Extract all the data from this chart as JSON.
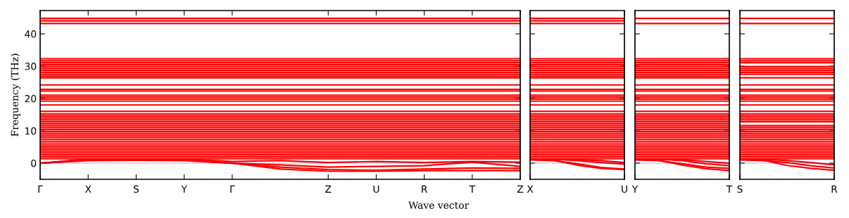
{
  "chart_data": [
    {
      "type": "line",
      "ylabel": "Frequency (THz)",
      "xlabel": "Wave vector",
      "color": "#ff0000",
      "line_style": "solid",
      "marker": "none",
      "grid": false,
      "ylim": [
        -5,
        47.2
      ],
      "yticks": [
        0,
        10,
        20,
        30,
        40
      ],
      "categories": [
        "Γ",
        "X",
        "S",
        "Y",
        "Γ",
        null,
        "Z",
        "U",
        "R",
        "T",
        "Z"
      ],
      "ref_lines": [
        {
          "axis": "y",
          "value": 0,
          "color": "#0000ff",
          "line_style": "dotted"
        }
      ],
      "series": [
        {
          "values": [
            44.8,
            44.8,
            44.8,
            44.8,
            44.8,
            44.8,
            44.8,
            44.8,
            44.8,
            44.8,
            44.8
          ]
        },
        {
          "values": [
            44.0,
            44.0,
            44.0,
            44.0,
            44.0,
            44.0,
            44.0,
            44.0,
            44.0,
            44.0,
            44.0
          ]
        },
        {
          "values": [
            43.2,
            43.2,
            43.2,
            43.2,
            43.2,
            43.2,
            43.2,
            43.2,
            43.2,
            43.2,
            43.2
          ]
        },
        {
          "values": [
            32.3,
            32.3,
            32.3,
            32.3,
            32.3,
            32.3,
            32.3,
            32.3,
            32.3,
            32.3,
            32.3
          ]
        },
        {
          "values": [
            31.7,
            31.7,
            31.7,
            31.7,
            31.7,
            31.7,
            31.7,
            31.7,
            31.7,
            31.7,
            31.7
          ]
        },
        {
          "values": [
            31.1,
            31.1,
            31.1,
            31.1,
            31.1,
            31.1,
            31.1,
            31.1,
            31.1,
            31.1,
            31.1
          ]
        },
        {
          "values": [
            30.5,
            30.5,
            30.5,
            30.5,
            30.5,
            30.5,
            30.5,
            30.5,
            30.5,
            30.5,
            30.5
          ]
        },
        {
          "values": [
            29.9,
            29.9,
            29.9,
            29.9,
            29.9,
            29.9,
            29.9,
            29.9,
            29.9,
            29.9,
            29.9
          ]
        },
        {
          "values": [
            29.3,
            29.3,
            29.3,
            29.3,
            29.3,
            29.3,
            29.3,
            29.3,
            29.3,
            29.3,
            29.3
          ]
        },
        {
          "values": [
            28.7,
            28.7,
            28.7,
            28.7,
            28.7,
            28.7,
            28.7,
            28.7,
            28.7,
            28.7,
            28.7
          ]
        },
        {
          "values": [
            28.1,
            28.1,
            28.1,
            28.1,
            28.1,
            28.1,
            28.1,
            28.1,
            28.1,
            28.1,
            28.1
          ]
        },
        {
          "values": [
            27.5,
            27.5,
            27.5,
            27.5,
            27.5,
            27.5,
            27.5,
            27.5,
            27.5,
            27.5,
            27.5
          ]
        },
        {
          "values": [
            26.9,
            26.9,
            26.9,
            26.9,
            26.9,
            26.9,
            26.9,
            26.9,
            26.9,
            26.9,
            26.9
          ]
        },
        {
          "values": [
            26.4,
            26.4,
            26.4,
            26.4,
            26.4,
            26.4,
            26.4,
            26.4,
            26.4,
            26.4,
            26.4
          ]
        },
        {
          "values": [
            24.2,
            24.2,
            24.2,
            24.2,
            24.2,
            24.2,
            24.2,
            24.2,
            24.2,
            24.2,
            24.2
          ]
        },
        {
          "values": [
            22.8,
            22.8,
            22.8,
            22.8,
            22.8,
            22.8,
            22.8,
            22.8,
            22.8,
            22.8,
            22.8
          ]
        },
        {
          "values": [
            22.3,
            22.3,
            22.3,
            22.3,
            22.3,
            22.3,
            22.3,
            22.3,
            22.3,
            22.3,
            22.3
          ]
        },
        {
          "values": [
            21.0,
            21.0,
            21.0,
            21.0,
            21.0,
            21.0,
            21.0,
            21.0,
            21.0,
            21.0,
            21.0
          ]
        },
        {
          "values": [
            20.4,
            20.4,
            20.4,
            20.4,
            20.4,
            20.4,
            20.4,
            20.4,
            20.4,
            20.4,
            20.4
          ]
        },
        {
          "values": [
            19.8,
            19.8,
            19.8,
            19.8,
            19.8,
            19.8,
            19.8,
            19.8,
            19.8,
            19.8,
            19.8
          ]
        },
        {
          "values": [
            19.2,
            19.2,
            19.2,
            19.2,
            19.2,
            19.2,
            19.2,
            19.2,
            19.2,
            19.2,
            19.2
          ]
        },
        {
          "values": [
            18.0,
            18.0,
            18.0,
            18.0,
            18.0,
            18.0,
            18.0,
            18.0,
            18.0,
            18.0,
            18.0
          ]
        },
        {
          "values": [
            16.0,
            16.0,
            16.0,
            16.0,
            16.0,
            16.0,
            16.0,
            16.0,
            16.0,
            16.0,
            16.0
          ]
        },
        {
          "values": [
            15.2,
            15.2,
            15.2,
            15.2,
            15.2,
            15.2,
            15.2,
            15.2,
            15.2,
            15.2,
            15.2
          ]
        },
        {
          "values": [
            14.6,
            14.6,
            14.6,
            14.6,
            14.6,
            14.6,
            14.6,
            14.6,
            14.6,
            14.6,
            14.6
          ]
        },
        {
          "values": [
            14.0,
            14.0,
            14.0,
            14.0,
            14.0,
            14.0,
            14.0,
            14.0,
            14.0,
            14.0,
            14.0
          ]
        },
        {
          "values": [
            13.4,
            13.4,
            13.4,
            13.4,
            13.4,
            13.4,
            13.4,
            13.4,
            13.4,
            13.4,
            13.4
          ]
        },
        {
          "values": [
            12.8,
            12.8,
            12.8,
            12.8,
            12.8,
            12.8,
            12.8,
            12.8,
            12.8,
            12.8,
            12.8
          ]
        },
        {
          "values": [
            12.2,
            12.2,
            12.2,
            12.2,
            12.2,
            12.2,
            12.2,
            12.2,
            12.2,
            12.2,
            12.2
          ]
        },
        {
          "values": [
            11.6,
            11.6,
            11.6,
            11.6,
            11.6,
            11.6,
            11.6,
            11.6,
            11.6,
            11.6,
            11.6
          ]
        },
        {
          "values": [
            11.0,
            11.0,
            11.0,
            11.0,
            11.0,
            11.0,
            11.0,
            11.0,
            11.0,
            11.0,
            11.0
          ]
        },
        {
          "values": [
            10.4,
            10.4,
            10.4,
            10.4,
            10.4,
            10.4,
            10.4,
            10.4,
            10.4,
            10.4,
            10.4
          ]
        },
        {
          "values": [
            9.8,
            9.8,
            9.8,
            9.8,
            9.8,
            9.8,
            9.8,
            9.8,
            9.8,
            9.8,
            9.8
          ]
        },
        {
          "values": [
            9.2,
            9.2,
            9.2,
            9.2,
            9.2,
            9.2,
            9.2,
            9.2,
            9.2,
            9.2,
            9.2
          ]
        },
        {
          "values": [
            8.6,
            8.6,
            8.6,
            8.6,
            8.6,
            8.6,
            8.6,
            8.6,
            8.6,
            8.6,
            8.6
          ]
        },
        {
          "values": [
            8.0,
            8.0,
            8.0,
            8.0,
            8.0,
            8.0,
            8.0,
            8.0,
            8.0,
            8.0,
            8.0
          ]
        },
        {
          "values": [
            7.4,
            7.4,
            7.4,
            7.4,
            7.4,
            7.4,
            7.4,
            7.4,
            7.4,
            7.4,
            7.4
          ]
        },
        {
          "values": [
            6.8,
            6.8,
            6.8,
            6.8,
            6.8,
            6.8,
            6.8,
            6.8,
            6.8,
            6.8,
            6.8
          ]
        },
        {
          "values": [
            6.2,
            6.2,
            6.2,
            6.2,
            6.2,
            6.2,
            6.2,
            6.2,
            6.2,
            6.2,
            6.2
          ]
        },
        {
          "values": [
            5.6,
            5.6,
            5.6,
            5.6,
            5.6,
            5.6,
            5.6,
            5.6,
            5.6,
            5.6,
            5.6
          ]
        },
        {
          "values": [
            5.0,
            5.0,
            5.0,
            5.0,
            5.0,
            5.0,
            5.0,
            5.0,
            5.0,
            5.0,
            5.0
          ]
        },
        {
          "values": [
            4.4,
            4.4,
            4.4,
            4.4,
            4.4,
            4.4,
            4.4,
            4.4,
            4.4,
            4.4,
            4.4
          ]
        },
        {
          "values": [
            3.8,
            3.8,
            3.8,
            3.8,
            3.8,
            3.8,
            3.8,
            3.8,
            3.8,
            3.8,
            3.8
          ]
        },
        {
          "values": [
            3.2,
            3.2,
            3.2,
            3.2,
            3.2,
            3.2,
            3.2,
            3.2,
            3.2,
            3.2,
            3.2
          ]
        },
        {
          "values": [
            2.6,
            2.6,
            2.6,
            2.6,
            2.6,
            2.6,
            2.6,
            2.6,
            2.6,
            2.6,
            2.6
          ]
        },
        {
          "values": [
            2.0,
            2.0,
            2.0,
            2.0,
            2.0,
            2.0,
            2.0,
            2.0,
            2.0,
            2.0,
            2.0
          ]
        },
        {
          "values": [
            1.4,
            1.4,
            1.4,
            1.4,
            1.4,
            1.4,
            1.4,
            1.4,
            1.4,
            1.4,
            1.4
          ]
        },
        {
          "values": [
            0,
            1.2,
            1.2,
            1.2,
            0,
            -1.8,
            -2.5,
            -2.5,
            -2.3,
            -2.3,
            -2.3
          ]
        },
        {
          "values": [
            0,
            1.0,
            1.0,
            1.0,
            0,
            -1.2,
            -2.0,
            -2.2,
            -1.8,
            -1.5,
            -1.6
          ]
        },
        {
          "values": [
            0,
            0.8,
            0.9,
            0.8,
            0,
            -0.5,
            -1.2,
            -1.0,
            -0.8,
            0.3,
            -1.0
          ]
        },
        {
          "values": [
            0,
            1.3,
            1.3,
            1.3,
            0.5,
            0.8,
            0.2,
            0.5,
            0.2,
            0.5,
            0.3
          ]
        }
      ]
    },
    {
      "type": "line",
      "color": "#ff0000",
      "line_style": "solid",
      "marker": "none",
      "grid": false,
      "tick_labels": "x",
      "ylim": [
        -5,
        47.2
      ],
      "yticks": [
        0,
        10,
        20,
        30,
        40
      ],
      "categories": [
        "X",
        null,
        null,
        null,
        "U"
      ],
      "ref_lines": [
        {
          "axis": "y",
          "value": 0,
          "color": "#0000ff",
          "line_style": "dotted"
        }
      ],
      "series": [
        {
          "values": [
            44.8,
            44.8,
            44.8,
            44.8,
            44.8
          ]
        },
        {
          "values": [
            44.0,
            44.0,
            44.0,
            44.0,
            44.0
          ]
        },
        {
          "values": [
            43.2,
            43.2,
            43.2,
            43.2,
            43.2
          ]
        },
        {
          "values": [
            32.3,
            32.3,
            32.3,
            32.3,
            32.3
          ]
        },
        {
          "values": [
            31.7,
            31.7,
            31.7,
            31.7,
            31.7
          ]
        },
        {
          "values": [
            31.1,
            31.1,
            31.1,
            31.1,
            31.1
          ]
        },
        {
          "values": [
            30.5,
            30.5,
            30.5,
            30.5,
            30.5
          ]
        },
        {
          "values": [
            29.9,
            29.9,
            29.9,
            29.9,
            29.9
          ]
        },
        {
          "values": [
            29.3,
            29.3,
            29.3,
            29.3,
            29.3
          ]
        },
        {
          "values": [
            28.7,
            28.7,
            28.7,
            28.7,
            28.7
          ]
        },
        {
          "values": [
            28.1,
            28.1,
            28.1,
            28.1,
            28.1
          ]
        },
        {
          "values": [
            27.5,
            27.5,
            27.5,
            27.5,
            27.5
          ]
        },
        {
          "values": [
            26.9,
            26.9,
            26.9,
            26.9,
            26.9
          ]
        },
        {
          "values": [
            26.4,
            26.4,
            26.4,
            26.4,
            26.4
          ]
        },
        {
          "values": [
            24.2,
            24.2,
            24.2,
            24.2,
            24.2
          ]
        },
        {
          "values": [
            22.8,
            22.8,
            22.8,
            22.8,
            22.8
          ]
        },
        {
          "values": [
            22.3,
            22.3,
            22.3,
            22.3,
            22.3
          ]
        },
        {
          "values": [
            21.0,
            21.0,
            21.0,
            21.0,
            21.0
          ]
        },
        {
          "values": [
            20.4,
            20.4,
            20.4,
            20.4,
            20.4
          ]
        },
        {
          "values": [
            19.8,
            19.8,
            19.8,
            19.8,
            19.8
          ]
        },
        {
          "values": [
            19.2,
            19.2,
            19.2,
            19.2,
            19.2
          ]
        },
        {
          "values": [
            18.0,
            18.0,
            18.0,
            18.0,
            18.0
          ]
        },
        {
          "values": [
            16.0,
            16.0,
            16.0,
            16.0,
            16.0
          ]
        },
        {
          "values": [
            15.2,
            15.2,
            15.2,
            15.2,
            15.2
          ]
        },
        {
          "values": [
            14.6,
            14.6,
            14.6,
            14.6,
            14.6
          ]
        },
        {
          "values": [
            14.0,
            14.0,
            14.0,
            14.0,
            14.0
          ]
        },
        {
          "values": [
            13.4,
            13.4,
            13.4,
            13.4,
            13.4
          ]
        },
        {
          "values": [
            12.8,
            12.8,
            12.8,
            12.8,
            12.8
          ]
        },
        {
          "values": [
            12.2,
            12.2,
            12.2,
            12.2,
            12.2
          ]
        },
        {
          "values": [
            11.6,
            11.6,
            11.6,
            11.6,
            11.6
          ]
        },
        {
          "values": [
            11.0,
            11.0,
            11.0,
            11.0,
            11.0
          ]
        },
        {
          "values": [
            10.4,
            10.4,
            10.4,
            10.4,
            10.4
          ]
        },
        {
          "values": [
            9.8,
            9.8,
            9.8,
            9.8,
            9.8
          ]
        },
        {
          "values": [
            9.2,
            9.2,
            9.2,
            9.2,
            9.2
          ]
        },
        {
          "values": [
            8.6,
            8.6,
            8.6,
            8.6,
            8.6
          ]
        },
        {
          "values": [
            8.0,
            8.0,
            8.0,
            8.0,
            8.0
          ]
        },
        {
          "values": [
            7.4,
            7.4,
            7.4,
            7.4,
            7.4
          ]
        },
        {
          "values": [
            6.8,
            6.8,
            6.8,
            6.8,
            6.8
          ]
        },
        {
          "values": [
            6.2,
            6.2,
            6.2,
            6.2,
            6.2
          ]
        },
        {
          "values": [
            5.6,
            5.6,
            5.6,
            5.6,
            5.6
          ]
        },
        {
          "values": [
            5.0,
            5.0,
            5.0,
            5.0,
            5.0
          ]
        },
        {
          "values": [
            4.4,
            4.4,
            4.4,
            4.4,
            4.4
          ]
        },
        {
          "values": [
            3.8,
            3.8,
            3.8,
            3.8,
            3.8
          ]
        },
        {
          "values": [
            3.2,
            3.2,
            3.2,
            3.2,
            3.2
          ]
        },
        {
          "values": [
            2.6,
            2.6,
            2.6,
            2.6,
            2.6
          ]
        },
        {
          "values": [
            2.0,
            2.0,
            2.0,
            2.0,
            2.0
          ]
        },
        {
          "values": [
            1.4,
            1.4,
            1.4,
            1.4,
            1.4
          ]
        },
        {
          "values": [
            1.2,
            0.9,
            -0.6,
            -1.6,
            -2.0
          ]
        },
        {
          "values": [
            1.0,
            0.8,
            -0.2,
            -1.3,
            -1.8
          ]
        },
        {
          "values": [
            1.3,
            1.2,
            0.8,
            0.2,
            -0.3
          ]
        },
        {
          "values": [
            1.3,
            1.3,
            1.1,
            0.8,
            0.2
          ]
        }
      ]
    },
    {
      "type": "line",
      "color": "#ff0000",
      "line_style": "solid",
      "marker": "none",
      "grid": false,
      "tick_labels": "x",
      "ylim": [
        -5,
        47.2
      ],
      "yticks": [
        0,
        10,
        20,
        30,
        40
      ],
      "categories": [
        "Y",
        null,
        null,
        null,
        "T"
      ],
      "ref_lines": [
        {
          "axis": "y",
          "value": 0,
          "color": "#0000ff",
          "line_style": "dotted"
        }
      ],
      "series": [
        {
          "values": [
            44.8,
            44.8,
            44.8,
            44.8,
            44.8
          ]
        },
        {
          "values": [
            43.2,
            43.2,
            43.2,
            43.2,
            43.2
          ]
        },
        {
          "values": [
            32.3,
            32.3,
            32.3,
            32.3,
            32.3
          ]
        },
        {
          "values": [
            31.7,
            31.7,
            31.7,
            31.7,
            31.7
          ]
        },
        {
          "values": [
            31.1,
            31.1,
            31.1,
            31.1,
            31.1
          ]
        },
        {
          "values": [
            30.5,
            30.5,
            30.5,
            30.5,
            30.5
          ]
        },
        {
          "values": [
            29.9,
            29.9,
            29.9,
            29.9,
            29.9
          ]
        },
        {
          "values": [
            29.3,
            29.3,
            29.3,
            29.3,
            29.3
          ]
        },
        {
          "values": [
            28.7,
            28.7,
            28.7,
            28.7,
            28.7
          ]
        },
        {
          "values": [
            28.1,
            28.1,
            28.1,
            28.1,
            28.1
          ]
        },
        {
          "values": [
            27.5,
            27.5,
            27.5,
            27.5,
            27.5
          ]
        },
        {
          "values": [
            26.9,
            26.9,
            26.9,
            26.9,
            26.9
          ]
        },
        {
          "values": [
            26.4,
            26.4,
            26.4,
            26.4,
            26.4
          ]
        },
        {
          "values": [
            24.2,
            24.2,
            24.2,
            24.2,
            24.2
          ]
        },
        {
          "values": [
            22.8,
            22.8,
            22.8,
            22.8,
            22.8
          ]
        },
        {
          "values": [
            22.3,
            22.3,
            22.3,
            22.3,
            22.3
          ]
        },
        {
          "values": [
            21.0,
            21.0,
            21.0,
            21.0,
            21.0
          ]
        },
        {
          "values": [
            20.4,
            20.4,
            20.4,
            20.4,
            20.4
          ]
        },
        {
          "values": [
            19.8,
            19.8,
            19.8,
            19.8,
            19.8
          ]
        },
        {
          "values": [
            19.2,
            19.2,
            19.2,
            19.2,
            19.2
          ]
        },
        {
          "values": [
            18.0,
            18.0,
            18.0,
            18.0,
            18.0
          ]
        },
        {
          "values": [
            16.0,
            16.0,
            16.0,
            16.0,
            16.0
          ]
        },
        {
          "values": [
            15.2,
            15.2,
            15.2,
            15.2,
            15.2
          ]
        },
        {
          "values": [
            14.6,
            14.6,
            14.6,
            14.6,
            14.6
          ]
        },
        {
          "values": [
            14.0,
            14.0,
            14.0,
            14.0,
            14.0
          ]
        },
        {
          "values": [
            13.4,
            13.4,
            13.4,
            13.4,
            13.4
          ]
        },
        {
          "values": [
            12.8,
            12.8,
            12.8,
            12.8,
            12.8
          ]
        },
        {
          "values": [
            12.2,
            12.2,
            12.2,
            12.2,
            12.2
          ]
        },
        {
          "values": [
            11.6,
            11.6,
            11.6,
            11.6,
            11.6
          ]
        },
        {
          "values": [
            11.0,
            11.0,
            11.0,
            11.0,
            11.0
          ]
        },
        {
          "values": [
            10.4,
            10.4,
            10.4,
            10.4,
            10.4
          ]
        },
        {
          "values": [
            9.8,
            9.8,
            9.8,
            9.8,
            9.8
          ]
        },
        {
          "values": [
            9.2,
            9.2,
            9.2,
            9.2,
            9.2
          ]
        },
        {
          "values": [
            8.6,
            8.6,
            8.6,
            8.6,
            8.6
          ]
        },
        {
          "values": [
            8.0,
            8.0,
            8.0,
            8.0,
            8.0
          ]
        },
        {
          "values": [
            7.4,
            7.4,
            7.4,
            7.4,
            7.4
          ]
        },
        {
          "values": [
            6.8,
            6.8,
            6.8,
            6.8,
            6.8
          ]
        },
        {
          "values": [
            6.2,
            6.2,
            6.2,
            6.2,
            6.2
          ]
        },
        {
          "values": [
            5.6,
            5.6,
            5.6,
            5.6,
            5.6
          ]
        },
        {
          "values": [
            5.0,
            5.0,
            5.0,
            5.0,
            5.0
          ]
        },
        {
          "values": [
            4.4,
            4.4,
            4.4,
            4.4,
            4.4
          ]
        },
        {
          "values": [
            3.8,
            3.8,
            3.8,
            3.8,
            3.8
          ]
        },
        {
          "values": [
            3.2,
            3.2,
            3.2,
            3.2,
            3.2
          ]
        },
        {
          "values": [
            2.6,
            2.6,
            2.6,
            2.6,
            2.6
          ]
        },
        {
          "values": [
            2.0,
            2.0,
            2.0,
            2.0,
            2.0
          ]
        },
        {
          "values": [
            1.4,
            1.4,
            1.4,
            1.4,
            1.4
          ]
        },
        {
          "values": [
            1.2,
            0.9,
            -0.6,
            -1.7,
            -2.3
          ]
        },
        {
          "values": [
            1.0,
            0.8,
            -0.2,
            -1.2,
            -1.6
          ]
        },
        {
          "values": [
            1.3,
            1.2,
            0.8,
            -0.2,
            -0.8
          ]
        },
        {
          "values": [
            1.3,
            1.3,
            1.1,
            0.5,
            0.0
          ]
        }
      ]
    },
    {
      "type": "line",
      "color": "#ff0000",
      "line_style": "solid",
      "marker": "none",
      "grid": false,
      "tick_labels": "x",
      "ylim": [
        -5,
        47.2
      ],
      "yticks": [
        0,
        10,
        20,
        30,
        40
      ],
      "categories": [
        "S",
        null,
        null,
        null,
        "R"
      ],
      "ref_lines": [
        {
          "axis": "y",
          "value": 0,
          "color": "#0000ff",
          "line_style": "dotted"
        }
      ],
      "series": [
        {
          "values": [
            44.8,
            44.8,
            44.8,
            44.8,
            44.8
          ]
        },
        {
          "values": [
            43.2,
            43.2,
            43.2,
            43.2,
            43.2
          ]
        },
        {
          "values": [
            32.3,
            32.3,
            32.3,
            32.3,
            32.3
          ]
        },
        {
          "values": [
            31.7,
            31.7,
            31.7,
            31.7,
            31.7
          ]
        },
        {
          "values": [
            31.1,
            31.1,
            31.1,
            31.1,
            31.1
          ]
        },
        {
          "values": [
            29.9,
            29.9,
            29.9,
            29.9,
            29.9
          ]
        },
        {
          "values": [
            29.3,
            29.3,
            29.3,
            29.3,
            29.3
          ]
        },
        {
          "values": [
            28.7,
            28.7,
            28.7,
            28.7,
            28.7
          ]
        },
        {
          "values": [
            28.1,
            28.1,
            28.1,
            28.1,
            28.1
          ]
        },
        {
          "values": [
            27.5,
            27.5,
            27.5,
            27.5,
            27.5
          ]
        },
        {
          "values": [
            26.4,
            26.4,
            26.4,
            26.4,
            26.4
          ]
        },
        {
          "values": [
            24.2,
            24.2,
            24.2,
            24.2,
            24.2
          ]
        },
        {
          "values": [
            22.8,
            22.8,
            22.8,
            22.8,
            22.8
          ]
        },
        {
          "values": [
            22.3,
            22.3,
            22.3,
            22.3,
            22.3
          ]
        },
        {
          "values": [
            21.0,
            21.0,
            21.0,
            21.0,
            21.0
          ]
        },
        {
          "values": [
            20.4,
            20.4,
            20.4,
            20.4,
            20.4
          ]
        },
        {
          "values": [
            19.8,
            19.8,
            19.8,
            19.8,
            19.8
          ]
        },
        {
          "values": [
            19.2,
            19.2,
            19.2,
            19.2,
            19.2
          ]
        },
        {
          "values": [
            18.0,
            18.0,
            18.0,
            18.0,
            18.0
          ]
        },
        {
          "values": [
            16.0,
            16.0,
            16.0,
            16.0,
            16.0
          ]
        },
        {
          "values": [
            15.2,
            15.2,
            15.2,
            15.2,
            15.2
          ]
        },
        {
          "values": [
            14.6,
            14.6,
            14.6,
            14.6,
            14.6
          ]
        },
        {
          "values": [
            14.0,
            14.0,
            14.0,
            14.0,
            14.0
          ]
        },
        {
          "values": [
            13.4,
            13.4,
            13.4,
            13.4,
            13.4
          ]
        },
        {
          "values": [
            12.8,
            12.8,
            12.8,
            12.8,
            12.8
          ]
        },
        {
          "values": [
            11.6,
            11.6,
            11.6,
            11.6,
            11.6
          ]
        },
        {
          "values": [
            11.0,
            11.0,
            11.0,
            11.0,
            11.0
          ]
        },
        {
          "values": [
            10.4,
            10.4,
            10.4,
            10.4,
            10.4
          ]
        },
        {
          "values": [
            9.8,
            9.8,
            9.8,
            9.8,
            9.8
          ]
        },
        {
          "values": [
            9.2,
            9.2,
            9.2,
            9.2,
            9.2
          ]
        },
        {
          "values": [
            8.6,
            8.6,
            8.6,
            8.6,
            8.6
          ]
        },
        {
          "values": [
            8.0,
            8.0,
            8.0,
            8.0,
            8.0
          ]
        },
        {
          "values": [
            7.4,
            7.4,
            7.4,
            7.4,
            7.4
          ]
        },
        {
          "values": [
            6.8,
            6.8,
            6.8,
            6.8,
            6.8
          ]
        },
        {
          "values": [
            6.2,
            6.2,
            6.2,
            6.2,
            6.2
          ]
        },
        {
          "values": [
            5.6,
            5.6,
            5.6,
            5.6,
            5.6
          ]
        },
        {
          "values": [
            5.0,
            5.0,
            5.0,
            5.0,
            5.0
          ]
        },
        {
          "values": [
            4.4,
            4.4,
            4.4,
            4.4,
            4.4
          ]
        },
        {
          "values": [
            3.8,
            3.8,
            3.8,
            3.8,
            3.8
          ]
        },
        {
          "values": [
            3.2,
            3.2,
            3.2,
            3.2,
            3.2
          ]
        },
        {
          "values": [
            2.6,
            2.6,
            2.6,
            2.6,
            2.6
          ]
        },
        {
          "values": [
            2.0,
            2.0,
            2.0,
            2.0,
            2.0
          ]
        },
        {
          "values": [
            1.4,
            1.4,
            1.4,
            1.4,
            1.4
          ]
        },
        {
          "values": [
            1.2,
            0.9,
            -0.7,
            -1.6,
            -2.2
          ]
        },
        {
          "values": [
            1.0,
            0.8,
            0.2,
            -0.8,
            -1.5
          ]
        },
        {
          "values": [
            1.3,
            1.2,
            0.8,
            0.2,
            -0.5
          ]
        }
      ]
    }
  ]
}
